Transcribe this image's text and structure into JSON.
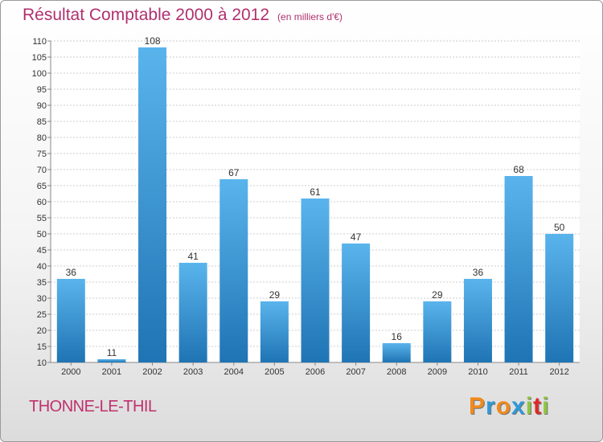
{
  "title": "Résultat Comptable 2000 à 2012",
  "subtitle": "(en milliers d'€)",
  "commune": "THONNE-LE-THIL",
  "logo": {
    "letters": [
      "P",
      "r",
      "o",
      "x",
      "i",
      "t",
      "i"
    ],
    "colors": [
      "#f08a1c",
      "#2e9ad8",
      "#f08a1c",
      "#2e9ad8",
      "#8dc63f",
      "#e02828",
      "#8dc63f"
    ]
  },
  "colors": {
    "bar_light": "#5ab4ec",
    "bar_dark": "#1f74b4",
    "title": "#b0306e",
    "grid": "#cccccc"
  },
  "chart_data": {
    "type": "bar",
    "title": "Résultat Comptable 2000 à 2012",
    "subtitle": "(en milliers d'€)",
    "categories": [
      "2000",
      "2001",
      "2002",
      "2003",
      "2004",
      "2005",
      "2006",
      "2007",
      "2008",
      "2009",
      "2010",
      "2011",
      "2012"
    ],
    "values": [
      36,
      11,
      108,
      41,
      67,
      29,
      61,
      47,
      16,
      29,
      36,
      68,
      50
    ],
    "ylim": [
      10,
      110
    ],
    "yticks": [
      10,
      15,
      20,
      25,
      30,
      35,
      40,
      45,
      50,
      55,
      60,
      65,
      70,
      75,
      80,
      85,
      90,
      95,
      100,
      105,
      110
    ],
    "xlabel": "",
    "ylabel": "",
    "grid": true
  }
}
